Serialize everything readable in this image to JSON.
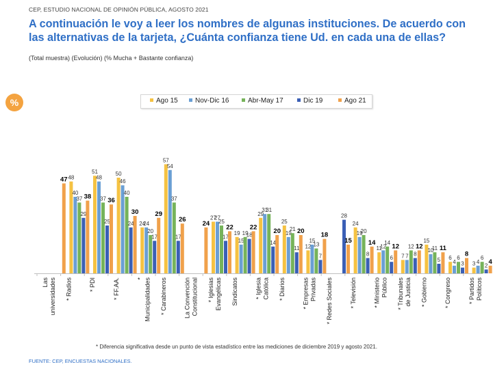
{
  "header": "CEP, ESTUDIO NACIONAL DE OPINIÓN PÚBLICA, AGOSTO 2021",
  "title": "A continuación le voy a leer los nombres de algunas instituciones. De acuerdo con las alternativas de la tarjeta, ¿Cuánta confianza tiene Ud. en cada una de ellas?",
  "subtitle": "(Total muestra) (Evolución) (% Mucha + Bastante confianza)",
  "badge": "%",
  "footnote": "* Diferencia significativa desde un punto de vista estadístico entre las mediciones de diciembre 2019 y agosto 2021.",
  "source": "FUENTE: CEP, ENCUESTAS NACIONALES.",
  "chart_data": {
    "type": "bar",
    "legend_position": "top",
    "grid": false,
    "ylim": [
      0,
      60
    ],
    "categories": [
      "Las universidades",
      "* Radios",
      "* PDI",
      "* FF.AA.",
      "* Municipalidades",
      "* Carabineros",
      "La Convención Constitucional",
      "* Iglesias Evangélicas",
      "Sindicatos",
      "* Iglesia Católica",
      "* Diarios",
      "* Empresas Privadas",
      "* Redes Sociales",
      "* Televisión",
      "* Ministerio Público",
      "* Tribunales de Justicia",
      "* Gobierno",
      "* Congreso",
      "* Partidos Políticos"
    ],
    "series": [
      {
        "name": "Ago 15",
        "color": "#f5c242",
        "values": [
          null,
          48,
          51,
          50,
          24,
          57,
          null,
          27,
          19,
          29,
          25,
          12,
          null,
          24,
          11,
          7,
          15,
          6,
          3
        ]
      },
      {
        "name": "Nov-Dic 16",
        "color": "#6a9fd4",
        "values": [
          null,
          40,
          48,
          46,
          24,
          54,
          null,
          27,
          15,
          31,
          19,
          15,
          null,
          19,
          12,
          7,
          10,
          4,
          4
        ]
      },
      {
        "name": "Abr-May 17",
        "color": "#76b35a",
        "values": [
          null,
          37,
          37,
          40,
          20,
          37,
          null,
          25,
          19,
          31,
          21,
          13,
          null,
          20,
          14,
          12,
          11,
          6,
          6
        ]
      },
      {
        "name": "Dic 19",
        "color": "#3b5fb5",
        "values": [
          null,
          29,
          25,
          24,
          17,
          17,
          null,
          17,
          18,
          14,
          11,
          7,
          28,
          8,
          6,
          8,
          5,
          3,
          2
        ]
      },
      {
        "name": "Ago 21",
        "color": "#f0a14b",
        "values": [
          47,
          38,
          36,
          30,
          29,
          26,
          24,
          22,
          22,
          20,
          20,
          18,
          15,
          14,
          12,
          12,
          11,
          8,
          4
        ]
      }
    ]
  }
}
